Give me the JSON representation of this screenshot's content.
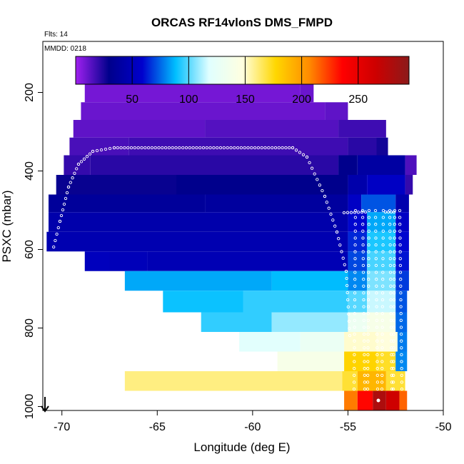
{
  "chart_data": {
    "type": "heatmap",
    "title": "ORCAS RF14vlonS DMS_FMPD",
    "annotations": {
      "flights": "Flts: 14",
      "date": "MMDD: 0218"
    },
    "xlabel": "Longitude (deg E)",
    "ylabel": "PSXC (mbar)",
    "xlim": [
      -71,
      -50
    ],
    "ylim": [
      1010,
      70
    ],
    "x_ticks": [
      -70,
      -65,
      -60,
      -55,
      -50
    ],
    "x_tick_labels": [
      "-70",
      "-65",
      "-60",
      "-55",
      "-50"
    ],
    "y_ticks": [
      200,
      400,
      600,
      800,
      1000
    ],
    "y_tick_labels": [
      "200",
      "400",
      "600",
      "800",
      "1000"
    ],
    "colorbar": {
      "min": 0,
      "max": 295,
      "ticks": [
        50,
        100,
        150,
        200,
        250
      ],
      "tick_labels": [
        "50",
        "100",
        "150",
        "200",
        "250"
      ],
      "stops": [
        "#a020f0",
        "#00008b",
        "#0000cd",
        "#00bfff",
        "#e0ffff",
        "#ffffe0",
        "#ffd700",
        "#ff8c00",
        "#ff0000",
        "#cd0000",
        "#8b1a1a"
      ]
    },
    "rows": [
      {
        "p0": 175,
        "p1": 225,
        "segments": [
          [
            -68.8,
            -57.5,
            8
          ],
          [
            -57.5,
            -56.8,
            10
          ]
        ]
      },
      {
        "p0": 225,
        "p1": 270,
        "segments": [
          [
            -69.0,
            -56.2,
            10
          ],
          [
            -56.2,
            -55.0,
            12
          ]
        ]
      },
      {
        "p0": 270,
        "p1": 315,
        "segments": [
          [
            -69.4,
            -62.5,
            12
          ],
          [
            -62.5,
            -55.5,
            14
          ],
          [
            -55.5,
            -53.0,
            18
          ]
        ]
      },
      {
        "p0": 315,
        "p1": 360,
        "segments": [
          [
            -69.6,
            -66.5,
            16
          ],
          [
            -66.5,
            -55.0,
            18
          ],
          [
            -55.0,
            -53.5,
            22
          ],
          [
            -53.5,
            -52.9,
            26
          ]
        ]
      },
      {
        "p0": 360,
        "p1": 410,
        "segments": [
          [
            -69.9,
            -68.5,
            20
          ],
          [
            -68.5,
            -55.5,
            22
          ],
          [
            -55.5,
            -54.5,
            30
          ],
          [
            -54.5,
            -52.0,
            40
          ],
          [
            -52.0,
            -51.4,
            15
          ]
        ]
      },
      {
        "p0": 410,
        "p1": 460,
        "segments": [
          [
            -70.3,
            -64.0,
            28
          ],
          [
            -64.0,
            -55.0,
            30
          ],
          [
            -55.0,
            -54.0,
            44
          ],
          [
            -54.0,
            -52.0,
            55
          ],
          [
            -52.0,
            -51.6,
            20
          ]
        ]
      },
      {
        "p0": 460,
        "p1": 505,
        "segments": [
          [
            -70.7,
            -62.5,
            36
          ],
          [
            -62.5,
            -55.0,
            38
          ],
          [
            -55.0,
            -54.3,
            55
          ],
          [
            -54.3,
            -52.5,
            72
          ],
          [
            -52.5,
            -51.8,
            45
          ]
        ]
      },
      {
        "p0": 505,
        "p1": 555,
        "segments": [
          [
            -70.7,
            -55.0,
            44
          ],
          [
            -55.0,
            -54.0,
            60
          ],
          [
            -54.0,
            -52.5,
            85
          ],
          [
            -52.5,
            -51.8,
            55
          ]
        ]
      },
      {
        "p0": 555,
        "p1": 605,
        "segments": [
          [
            -70.8,
            -55.0,
            46
          ],
          [
            -55.0,
            -54.0,
            65
          ],
          [
            -54.0,
            -52.5,
            92
          ],
          [
            -52.5,
            -51.8,
            60
          ]
        ]
      },
      {
        "p0": 605,
        "p1": 655,
        "segments": [
          [
            -68.8,
            -67.5,
            52
          ],
          [
            -67.5,
            -65.5,
            50
          ],
          [
            -65.5,
            -55.0,
            48
          ],
          [
            -55.0,
            -54.0,
            70
          ],
          [
            -54.0,
            -52.5,
            98
          ],
          [
            -52.5,
            -51.8,
            62
          ]
        ]
      },
      {
        "p0": 655,
        "p1": 705,
        "segments": [
          [
            -66.7,
            -59.0,
            85
          ],
          [
            -59.0,
            -55.0,
            88
          ],
          [
            -55.0,
            -54.0,
            80
          ],
          [
            -54.0,
            -52.5,
            105
          ],
          [
            -52.5,
            -51.8,
            68
          ]
        ]
      },
      {
        "p0": 705,
        "p1": 760,
        "segments": [
          [
            -64.7,
            -60.5,
            90
          ],
          [
            -60.5,
            -55.0,
            95
          ],
          [
            -55.0,
            -54.0,
            100
          ],
          [
            -54.0,
            -52.5,
            115
          ],
          [
            -52.5,
            -51.9,
            72
          ]
        ]
      },
      {
        "p0": 760,
        "p1": 810,
        "segments": [
          [
            -62.7,
            -59.0,
            95
          ],
          [
            -59.0,
            -55.0,
            108
          ],
          [
            -55.0,
            -54.0,
            130
          ],
          [
            -54.0,
            -52.5,
            140
          ],
          [
            -52.5,
            -51.9,
            75
          ]
        ]
      },
      {
        "p0": 810,
        "p1": 860,
        "segments": [
          [
            -60.7,
            -57.5,
            120
          ],
          [
            -57.5,
            -55.2,
            128
          ],
          [
            -55.2,
            -53.5,
            150
          ],
          [
            -53.5,
            -52.4,
            148
          ],
          [
            -52.4,
            -51.9,
            78
          ]
        ]
      },
      {
        "p0": 860,
        "p1": 910,
        "segments": [
          [
            -58.7,
            -55.2,
            140
          ],
          [
            -55.2,
            -53.5,
            178
          ],
          [
            -53.5,
            -52.5,
            172
          ],
          [
            -52.5,
            -51.9,
            80
          ]
        ]
      },
      {
        "p0": 910,
        "p1": 960,
        "segments": [
          [
            -66.7,
            -55.3,
            160
          ],
          [
            -55.3,
            -54.5,
            170
          ],
          [
            -54.5,
            -53.0,
            190
          ],
          [
            -53.0,
            -52.0,
            170
          ]
        ]
      },
      {
        "p0": 960,
        "p1": 1010,
        "segments": [
          [
            -55.2,
            -54.5,
            210
          ],
          [
            -54.5,
            -53.7,
            235
          ],
          [
            -53.7,
            -53.0,
            280
          ],
          [
            -53.0,
            -52.3,
            265
          ],
          [
            -52.3,
            -51.9,
            215
          ]
        ]
      }
    ],
    "track_points": "white open circles tracing the flight path"
  }
}
